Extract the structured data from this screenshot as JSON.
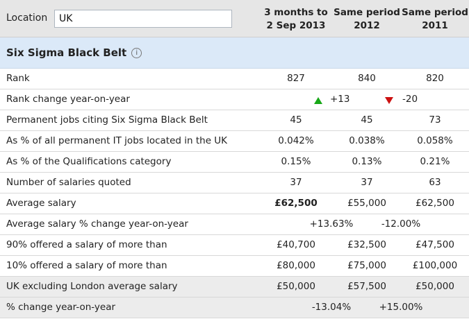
{
  "header": {
    "location_label": "Location",
    "location_value": "UK",
    "col1_line1": "3 months to",
    "col1_line2": "2 Sep 2013",
    "col2_line1": "Same period",
    "col2_line2": "2012",
    "col3_line1": "Same period",
    "col3_line2": "2011"
  },
  "section": {
    "title": "Six Sigma Black Belt",
    "info_icon": "info-icon"
  },
  "rows": {
    "rank": {
      "label": "Rank",
      "v1": "827",
      "v2": "840",
      "v3": "820"
    },
    "rank_change": {
      "label": "Rank change year-on-year",
      "ch1": "+13",
      "ch2": "-20",
      "up_color": "#18a818",
      "down_color": "#cc1111"
    },
    "perm_jobs": {
      "label": "Permanent jobs citing Six Sigma Black Belt",
      "v1": "45",
      "v2": "45",
      "v3": "73"
    },
    "pct_it": {
      "label": "As % of all permanent IT jobs located in the UK",
      "v1": "0.042%",
      "v2": "0.038%",
      "v3": "0.058%"
    },
    "pct_qual": {
      "label": "As % of the Qualifications category",
      "v1": "0.15%",
      "v2": "0.13%",
      "v3": "0.21%"
    },
    "salaries_quoted": {
      "label": "Number of salaries quoted",
      "v1": "37",
      "v2": "37",
      "v3": "63"
    },
    "avg_salary": {
      "label": "Average salary",
      "v1": "£62,500",
      "v2": "£55,000",
      "v3": "£62,500"
    },
    "avg_salary_change": {
      "label": "Average salary % change year-on-year",
      "ch1": "+13.63%",
      "ch2": "-12.00%"
    },
    "p90": {
      "label": "90% offered a salary of more than",
      "v1": "£40,700",
      "v2": "£32,500",
      "v3": "£47,500"
    },
    "p10": {
      "label": "10% offered a salary of more than",
      "v1": "£80,000",
      "v2": "£75,000",
      "v3": "£100,000"
    },
    "ex_london": {
      "label": "UK excluding London average salary",
      "v1": "£50,000",
      "v2": "£57,500",
      "v3": "£50,000"
    },
    "ex_london_change": {
      "label": "% change year-on-year",
      "ch1": "-13.04%",
      "ch2": "+15.00%"
    }
  }
}
